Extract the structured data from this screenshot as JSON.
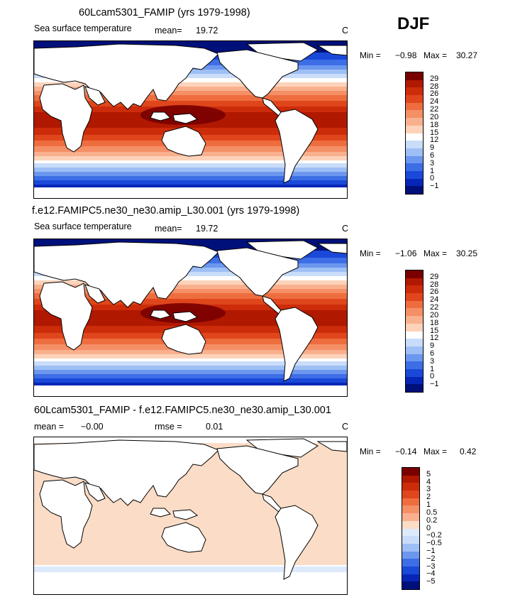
{
  "season": "DJF",
  "panels": [
    {
      "title": "60Lcam5301_FAMIP (yrs 1979-1998)",
      "variable": "Sea surface temperature",
      "stat1_label": "mean=",
      "stat1_value": "19.72",
      "stat2_label": "",
      "stat2_value": "",
      "units": "C",
      "min_label": "Min =",
      "min_value": "−0.98",
      "max_label": "Max =",
      "max_value": "30.27",
      "colorbar_labels": [
        "29",
        "28",
        "26",
        "24",
        "22",
        "20",
        "18",
        "15",
        "12",
        "9",
        "6",
        "3",
        "1",
        "0",
        "−1"
      ],
      "colorbar_colors": [
        "#7a0000",
        "#b01800",
        "#cc2c0a",
        "#e0461c",
        "#ee6d3f",
        "#f58f66",
        "#f9b08e",
        "#fcd3ba",
        "#ffffff",
        "#c9dcf9",
        "#9ebff5",
        "#6b97ee",
        "#3d6ee6",
        "#1a49d9",
        "#0726b8",
        "#00107a"
      ]
    },
    {
      "title": "f.e12.FAMIPC5.ne30_ne30.amip_L30.001 (yrs 1979-1998)",
      "variable": "Sea surface temperature",
      "stat1_label": "mean=",
      "stat1_value": "19.72",
      "stat2_label": "",
      "stat2_value": "",
      "units": "C",
      "min_label": "Min =",
      "min_value": "−1.06",
      "max_label": "Max =",
      "max_value": "30.25",
      "colorbar_labels": [
        "29",
        "28",
        "26",
        "24",
        "22",
        "20",
        "18",
        "15",
        "12",
        "9",
        "6",
        "3",
        "1",
        "0",
        "−1"
      ],
      "colorbar_colors": [
        "#7a0000",
        "#b01800",
        "#cc2c0a",
        "#e0461c",
        "#ee6d3f",
        "#f58f66",
        "#f9b08e",
        "#fcd3ba",
        "#ffffff",
        "#c9dcf9",
        "#9ebff5",
        "#6b97ee",
        "#3d6ee6",
        "#1a49d9",
        "#0726b8",
        "#00107a"
      ]
    },
    {
      "title": "60Lcam5301_FAMIP - f.e12.FAMIPC5.ne30_ne30.amip_L30.001",
      "variable": "",
      "stat1_label": "mean =",
      "stat1_value": "−0.00",
      "stat2_label": "rmse =",
      "stat2_value": "0.01",
      "units": "C",
      "min_label": "Min =",
      "min_value": "−0.14",
      "max_label": "Max =",
      "max_value": "0.42",
      "colorbar_labels": [
        "5",
        "4",
        "3",
        "2",
        "1",
        "0.5",
        "0.2",
        "0",
        "−0.2",
        "−0.5",
        "−1",
        "−2",
        "−3",
        "−4",
        "−5"
      ],
      "colorbar_colors": [
        "#7a0000",
        "#b01800",
        "#cc2c0a",
        "#e0461c",
        "#ee6d3f",
        "#f58f66",
        "#f9b08e",
        "#fbdcc6",
        "#ddeafc",
        "#c9dcf9",
        "#9ebff5",
        "#6b97ee",
        "#3d6ee6",
        "#1a49d9",
        "#0726b8",
        "#00107a"
      ]
    }
  ],
  "chart_data": [
    {
      "type": "heatmap",
      "title": "60Lcam5301_FAMIP (yrs 1979-1998)",
      "field": "Sea surface temperature",
      "units": "C",
      "season": "DJF",
      "mean": 19.72,
      "min": -0.98,
      "max": 30.27,
      "contour_levels": [
        -1,
        0,
        1,
        3,
        6,
        9,
        12,
        15,
        18,
        20,
        22,
        24,
        26,
        28,
        29
      ],
      "grid": false
    },
    {
      "type": "heatmap",
      "title": "f.e12.FAMIPC5.ne30_ne30.amip_L30.001 (yrs 1979-1998)",
      "field": "Sea surface temperature",
      "units": "C",
      "season": "DJF",
      "mean": 19.72,
      "min": -1.06,
      "max": 30.25,
      "contour_levels": [
        -1,
        0,
        1,
        3,
        6,
        9,
        12,
        15,
        18,
        20,
        22,
        24,
        26,
        28,
        29
      ],
      "grid": false
    },
    {
      "type": "heatmap",
      "title": "60Lcam5301_FAMIP - f.e12.FAMIPC5.ne30_ne30.amip_L30.001",
      "units": "C",
      "season": "DJF",
      "mean": -0.0,
      "rmse": 0.01,
      "min": -0.14,
      "max": 0.42,
      "contour_levels": [
        -5,
        -4,
        -3,
        -2,
        -1,
        -0.5,
        -0.2,
        0,
        0.2,
        0.5,
        1,
        2,
        3,
        4,
        5
      ],
      "grid": false
    }
  ]
}
